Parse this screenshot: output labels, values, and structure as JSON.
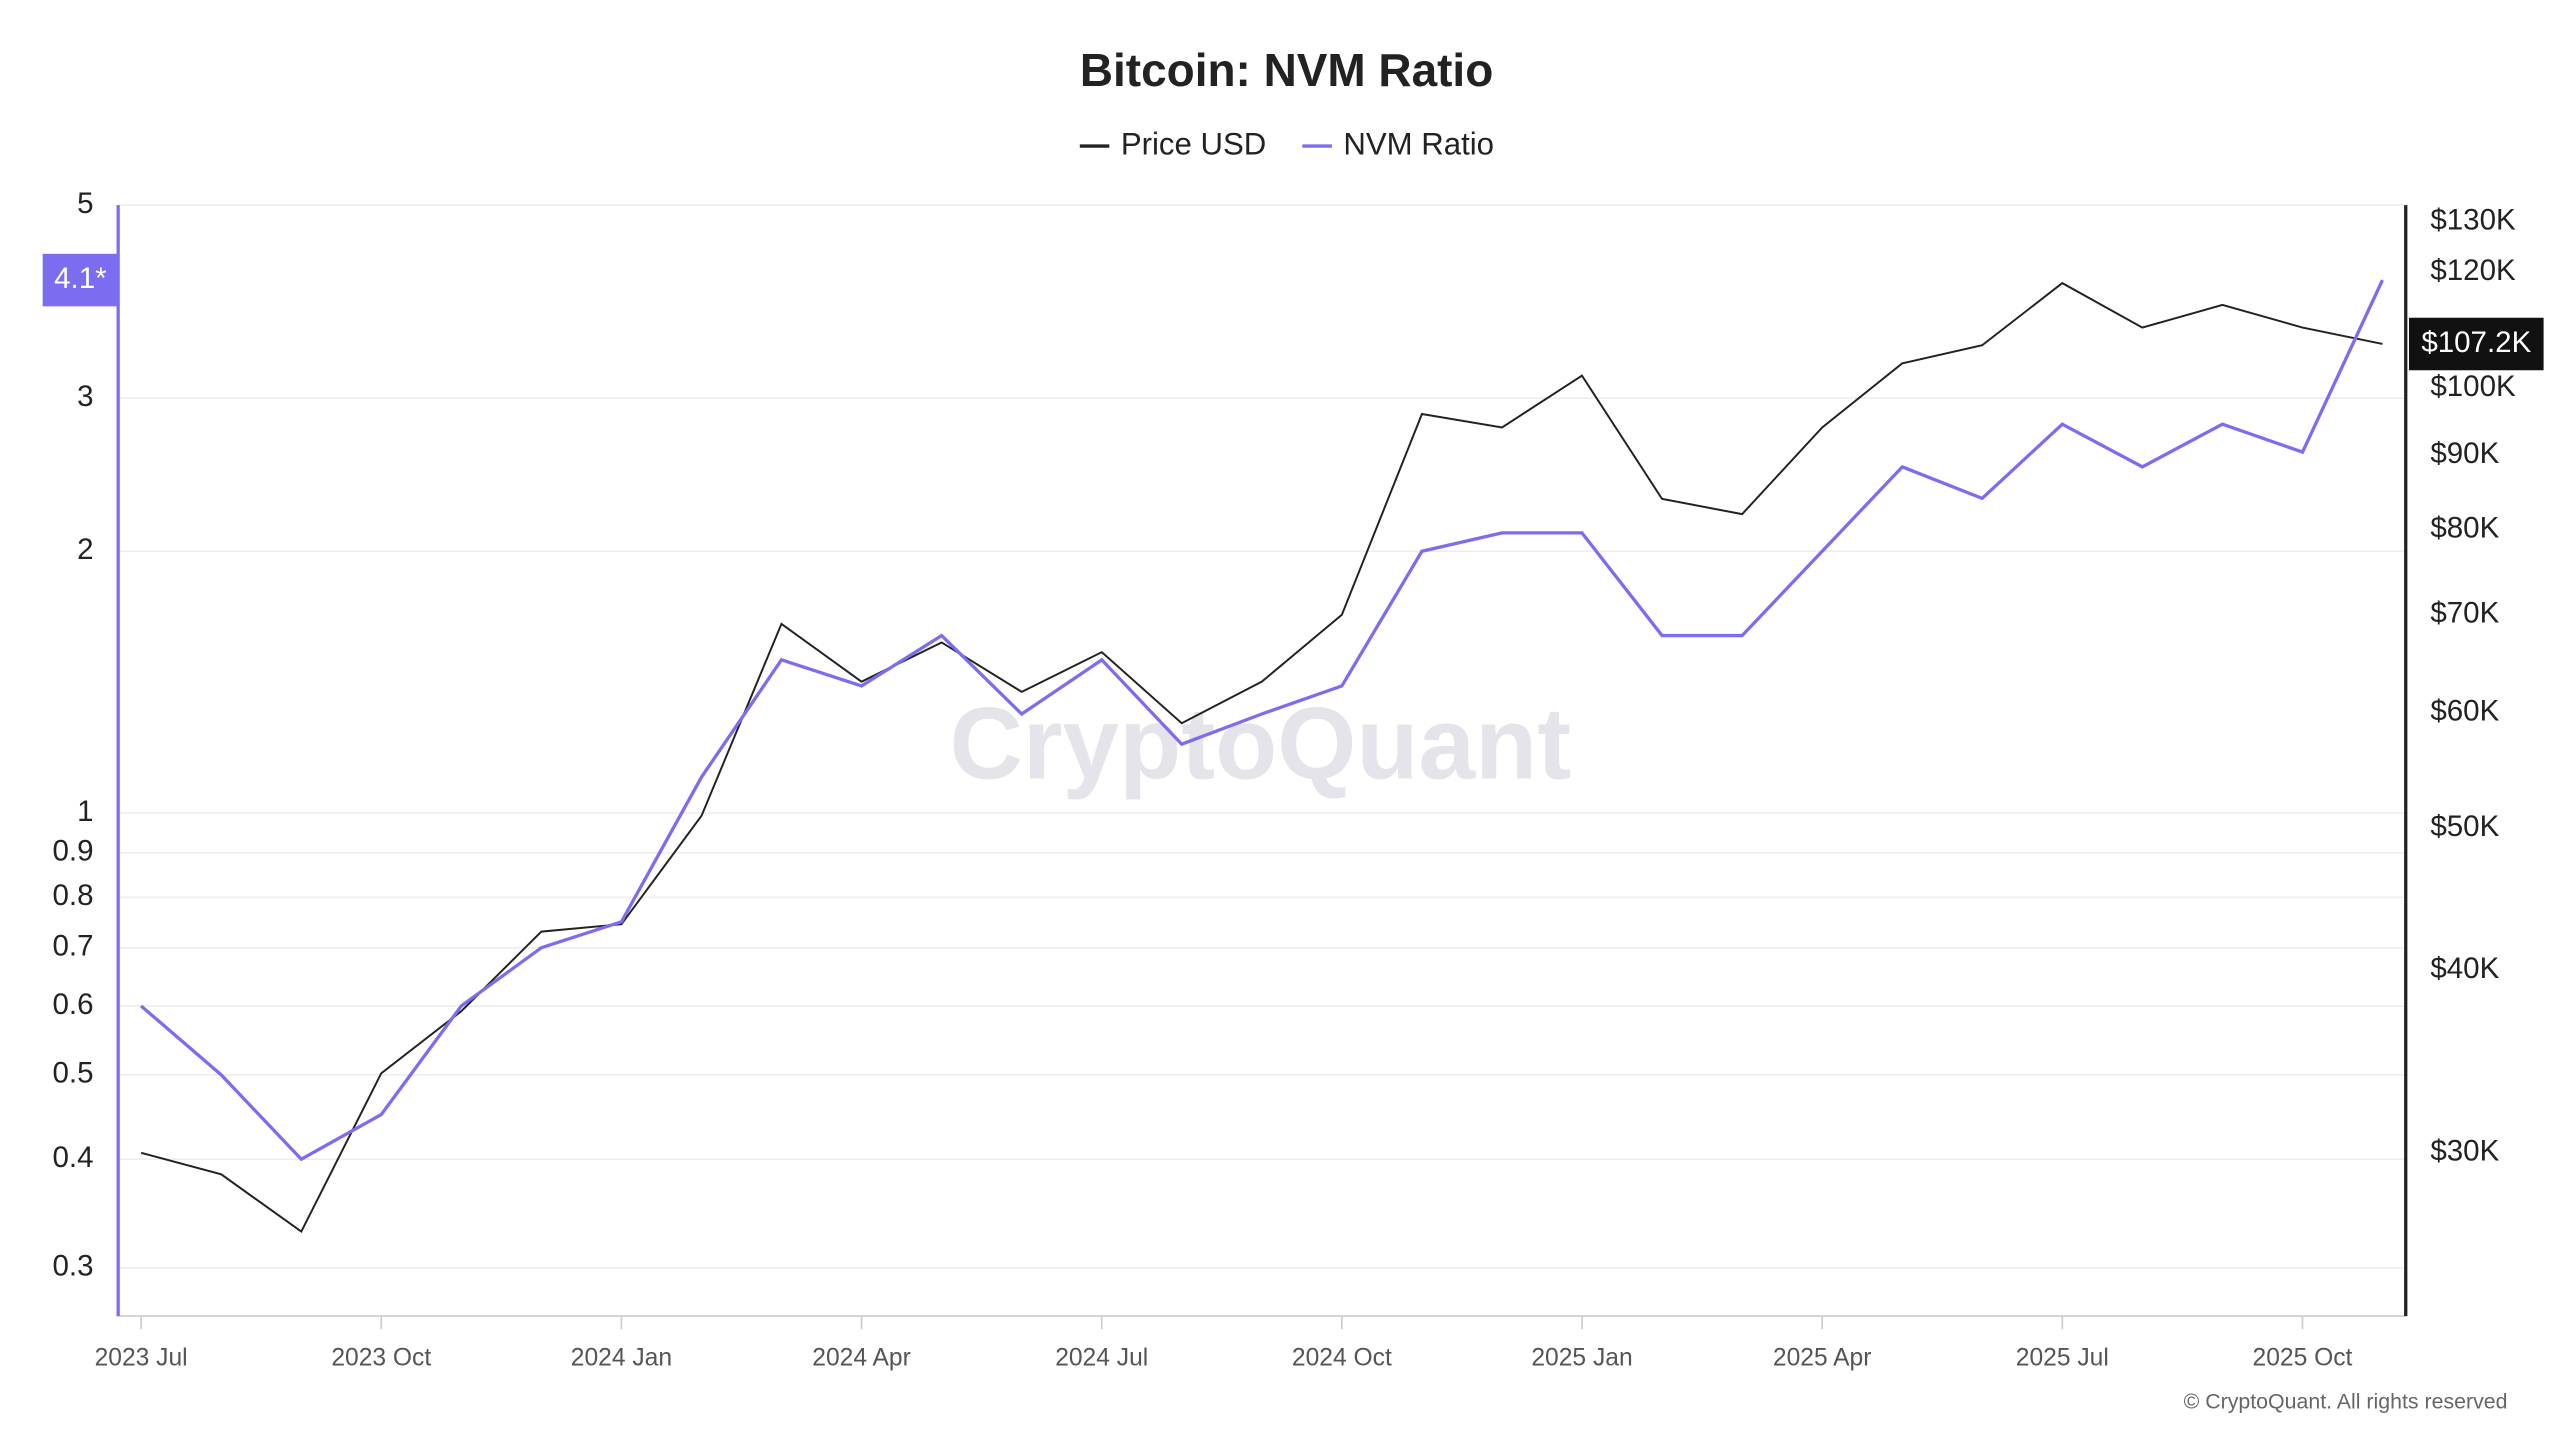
{
  "chart_data": {
    "type": "line",
    "title": "Bitcoin: NVM Ratio",
    "x": [
      "2023-07",
      "2023-08",
      "2023-09",
      "2023-10",
      "2023-11",
      "2023-12",
      "2024-01",
      "2024-02",
      "2024-03",
      "2024-04",
      "2024-05",
      "2024-06",
      "2024-07",
      "2024-08",
      "2024-09",
      "2024-10",
      "2024-11",
      "2024-12",
      "2025-01",
      "2025-02",
      "2025-03",
      "2025-04",
      "2025-05",
      "2025-06",
      "2025-07",
      "2025-08",
      "2025-09",
      "2025-10",
      "2025-11"
    ],
    "xticks": [
      {
        "value": "2023-07",
        "label": "2023 Jul"
      },
      {
        "value": "2023-10",
        "label": "2023 Oct"
      },
      {
        "value": "2024-01",
        "label": "2024 Jan"
      },
      {
        "value": "2024-04",
        "label": "2024 Apr"
      },
      {
        "value": "2024-07",
        "label": "2024 Jul"
      },
      {
        "value": "2024-10",
        "label": "2024 Oct"
      },
      {
        "value": "2025-01",
        "label": "2025 Jan"
      },
      {
        "value": "2025-04",
        "label": "2025 Apr"
      },
      {
        "value": "2025-07",
        "label": "2025 Jul"
      },
      {
        "value": "2025-10",
        "label": "2025 Oct"
      }
    ],
    "series": [
      {
        "name": "Price USD",
        "color": "#222222",
        "axis": "y2",
        "values": [
          30000,
          29000,
          26500,
          34000,
          37500,
          42500,
          43000,
          51000,
          69000,
          63000,
          67000,
          62000,
          66000,
          59000,
          63000,
          70000,
          96000,
          94000,
          102000,
          84000,
          82000,
          94000,
          104000,
          107000,
          118000,
          110000,
          114000,
          110000,
          107200
        ],
        "value_labels": [
          null,
          null,
          null,
          null,
          null,
          null,
          null,
          null,
          null,
          null,
          null,
          null,
          null,
          null,
          null,
          null,
          null,
          null,
          null,
          null,
          null,
          null,
          null,
          null,
          null,
          null,
          null,
          null,
          "$107.2K"
        ]
      },
      {
        "name": "NVM Ratio",
        "color": "#7b6cf0",
        "values": [
          0.6,
          0.5,
          0.4,
          0.45,
          0.6,
          0.7,
          0.75,
          1.1,
          1.5,
          1.4,
          1.6,
          1.3,
          1.5,
          1.2,
          1.3,
          1.4,
          2.0,
          2.1,
          2.1,
          1.6,
          1.6,
          2.0,
          2.5,
          2.3,
          2.8,
          2.5,
          2.8,
          2.6,
          4.1
        ],
        "value_labels": [
          null,
          null,
          null,
          null,
          null,
          null,
          null,
          null,
          null,
          null,
          null,
          null,
          null,
          null,
          null,
          null,
          null,
          null,
          null,
          null,
          null,
          null,
          null,
          null,
          null,
          null,
          null,
          null,
          "4.1*"
        ]
      }
    ],
    "ylim": [
      0.264,
      5
    ],
    "yscale": "log",
    "yticks": [
      0.3,
      0.4,
      0.5,
      0.6,
      0.7,
      0.8,
      0.9,
      1,
      2,
      3,
      5
    ],
    "y2lim": [
      23200,
      133400
    ],
    "y2scale": "log",
    "y2ticks": [
      {
        "value": 30000,
        "label": "$30K"
      },
      {
        "value": 40000,
        "label": "$40K"
      },
      {
        "value": 50000,
        "label": "$50K"
      },
      {
        "value": 60000,
        "label": "$60K"
      },
      {
        "value": 70000,
        "label": "$70K"
      },
      {
        "value": 80000,
        "label": "$80K"
      },
      {
        "value": 90000,
        "label": "$90K"
      },
      {
        "value": 100000,
        "label": "$100K"
      },
      {
        "value": 120000,
        "label": "$120K"
      },
      {
        "value": 130000,
        "label": "$130K"
      }
    ],
    "grid": true,
    "legend": "top",
    "watermark": "CryptoQuant",
    "copyright": "© CryptoQuant. All rights reserved"
  }
}
